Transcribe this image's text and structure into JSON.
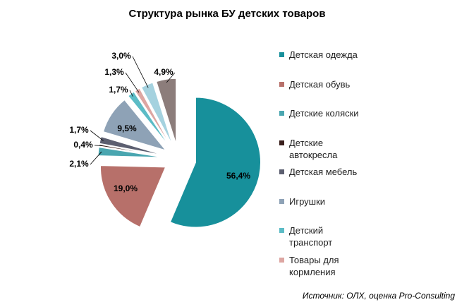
{
  "chart_data": {
    "type": "pie",
    "title": "Структура рынка БУ детских товаров",
    "categories": [
      "Детская одежда",
      "Детская обувь",
      "Детские коляски",
      "Детские автокресла",
      "Детская мебель",
      "Игрушки",
      "Детский транспорт",
      "Товары для кормления",
      null,
      null
    ],
    "values": [
      56.4,
      19.0,
      2.1,
      0.4,
      1.7,
      9.5,
      1.7,
      1.3,
      3.0,
      4.9
    ],
    "value_labels": [
      "56,4%",
      "19,0%",
      "2,1%",
      "0,4%",
      "1,7%",
      "9,5%",
      "1,7%",
      "1,3%",
      "3,0%",
      "4,9%"
    ],
    "colors": [
      "#17909b",
      "#b7706a",
      "#4aa6b0",
      "#3a1f1c",
      "#5c5f70",
      "#8ea2b6",
      "#5cbcc6",
      "#dda6a2",
      "#a5d2df",
      "#8c7d7b"
    ],
    "source": "Источник: ОЛХ, оценка Pro-Consulting"
  }
}
